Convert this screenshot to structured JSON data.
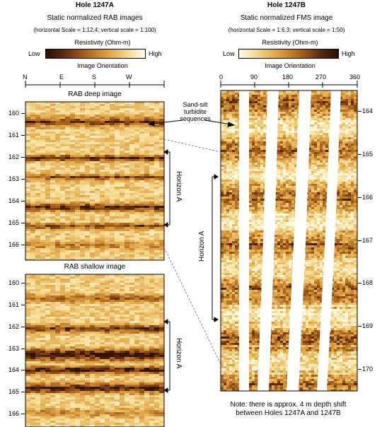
{
  "left": {
    "hole_title": "Hole 1247A",
    "subtitle": "Static normalized RAB images",
    "scale_note": "(horizontal Scale = 1:12.4; vertical scale = 1:100)",
    "resistivity_label": "Resistivity (Ohm-m)",
    "low_label": "Low",
    "high_label": "High",
    "orientation_label": "Image Orientation",
    "orientation_ticks": [
      "N",
      "E",
      "S",
      "W"
    ],
    "deep_title": "RAB deep image",
    "shallow_title": "RAB shallow image",
    "depths": [
      "160",
      "161",
      "162",
      "163",
      "164",
      "165",
      "166"
    ],
    "horizon_label": "Horizon A"
  },
  "right": {
    "hole_title": "Hole 1247B",
    "subtitle": "Static normalized FMS image",
    "scale_note": "(horizontal Scale = 1:6.3; vertical scale = 1:50)",
    "resistivity_label": "Resistivity (Ohm-m)",
    "low_label": "Low",
    "high_label": "High",
    "orientation_label": "Image Orientation",
    "orientation_ticks": [
      "0",
      "90",
      "180",
      "270",
      "360"
    ],
    "depths": [
      "164",
      "165",
      "166",
      "167",
      "168",
      "169",
      "170"
    ],
    "horizon_label": "Horizon A",
    "note_line1": "Note: there is approx. 4 m depth shift",
    "note_line2": "between Holes 1247A and 1247B"
  },
  "annotation": {
    "line1": "Sand-silt",
    "line2": "turbidite",
    "line3": "sequences"
  },
  "colors": {
    "low": "#fff8d8",
    "mid": "#e0a030",
    "high": "#3a1606"
  }
}
